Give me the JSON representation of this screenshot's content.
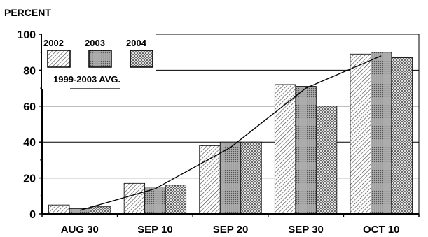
{
  "chart_data": {
    "type": "bar",
    "title": "",
    "ylabel": "PERCENT",
    "xlabel": "",
    "categories": [
      "AUG 30",
      "SEP 10",
      "SEP 20",
      "SEP 30",
      "OCT 10"
    ],
    "series": [
      {
        "name": "2002",
        "values": [
          5,
          17,
          38,
          72,
          89
        ]
      },
      {
        "name": "2003",
        "values": [
          3,
          15,
          40,
          71,
          90
        ]
      },
      {
        "name": "2004",
        "values": [
          4,
          16,
          40,
          60,
          87
        ]
      }
    ],
    "line_series": {
      "name": "1999-2003 AVG.",
      "values": [
        2,
        14,
        37,
        70,
        88
      ]
    },
    "ylim": [
      0,
      100
    ],
    "yticks": [
      0,
      20,
      40,
      60,
      80,
      100
    ],
    "grid": true,
    "legend_placement": "top-left",
    "colors": {
      "bar_2002": "#e8e8e8",
      "bar_2003": "#a8a8a8",
      "bar_2004": "#d6d6d6",
      "line": "#000000"
    }
  }
}
